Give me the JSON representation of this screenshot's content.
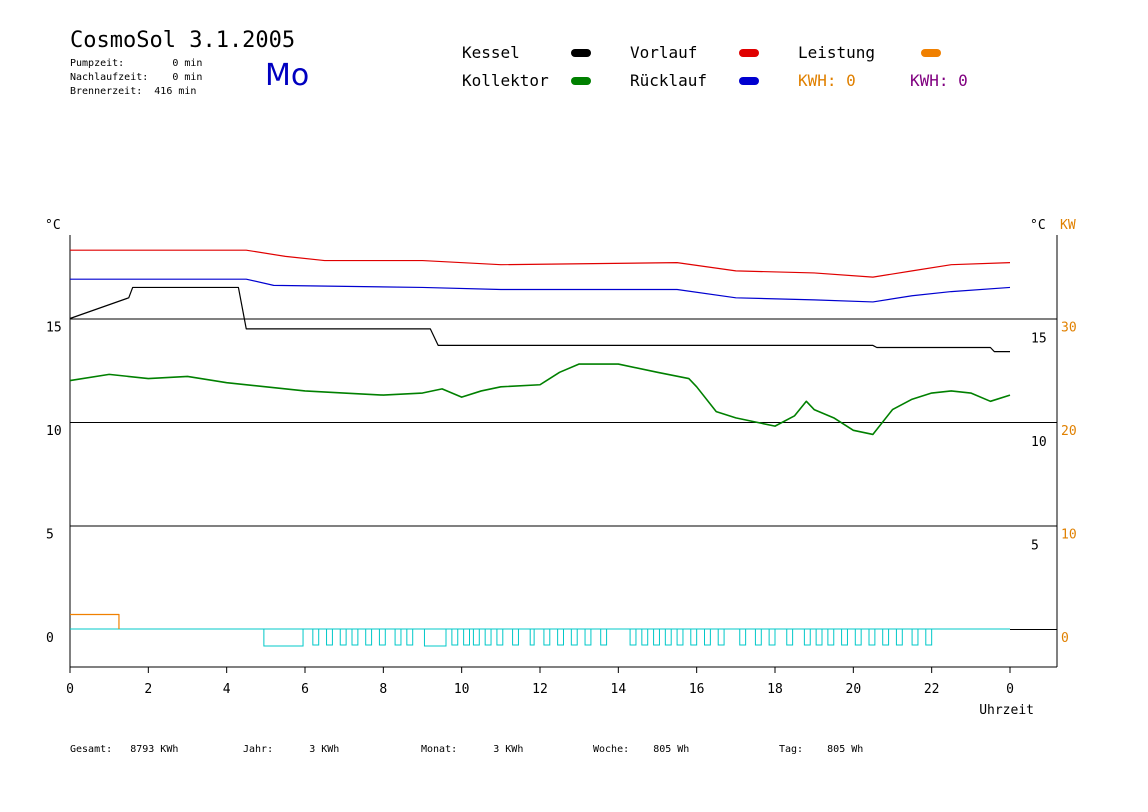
{
  "header": {
    "title": "CosmoSol 3.1.2005",
    "day": "Mo",
    "pumpzeit": "Pumpzeit:        0 min",
    "nachlaufzeit": "Nachlaufzeit:    0 min",
    "brennerzeit": "Brennerzeit:  416 min"
  },
  "legend": {
    "kessel": "Kessel",
    "kollektor": "Kollektor",
    "vorlauf": "Vorlauf",
    "ruecklauf": "Rücklauf",
    "leistung": "Leistung",
    "kwh1": "KWH: 0",
    "kwh2": "KWH: 0"
  },
  "colors": {
    "kessel": "#000000",
    "kollektor": "#008000",
    "vorlauf": "#e00000",
    "ruecklauf": "#0000d0",
    "leistung": "#f08000",
    "kwh2": "#800080",
    "pump": "#00c8c8"
  },
  "footer": {
    "gesamt": "Gesamt:   8793 KWh",
    "jahr": "Jahr:      3 KWh",
    "monat": "Monat:      3 KWh",
    "woche": "Woche:    805 Wh",
    "tag": "Tag:    805 Wh"
  },
  "chart_data": {
    "type": "line",
    "xlabel": "Uhrzeit",
    "ylabel_left": "°C",
    "ylabel_right": "°C",
    "ylabel_right2": "KW",
    "x_ticks": [
      "0",
      "2",
      "4",
      "6",
      "8",
      "10",
      "12",
      "14",
      "16",
      "18",
      "20",
      "22",
      "0"
    ],
    "y_ticks_left": [
      "0",
      "5",
      "10",
      "15"
    ],
    "y_ticks_right": [
      "5",
      "10",
      "15"
    ],
    "y_ticks_kw": [
      "0",
      "10",
      "20",
      "30"
    ],
    "xlim": [
      0,
      24
    ],
    "series": [
      {
        "name": "Vorlauf",
        "color": "#e00000",
        "points": [
          [
            0,
            18.3
          ],
          [
            4.5,
            18.3
          ],
          [
            5.5,
            18.0
          ],
          [
            6.5,
            17.8
          ],
          [
            9,
            17.8
          ],
          [
            11,
            17.6
          ],
          [
            15.5,
            17.7
          ],
          [
            17,
            17.3
          ],
          [
            19,
            17.2
          ],
          [
            20.5,
            17.0
          ],
          [
            21.5,
            17.3
          ],
          [
            22.5,
            17.6
          ],
          [
            24,
            17.7
          ]
        ]
      },
      {
        "name": "Rücklauf",
        "color": "#0000d0",
        "points": [
          [
            0,
            16.9
          ],
          [
            4.5,
            16.9
          ],
          [
            5.2,
            16.6
          ],
          [
            9,
            16.5
          ],
          [
            11,
            16.4
          ],
          [
            15.5,
            16.4
          ],
          [
            17,
            16.0
          ],
          [
            19,
            15.9
          ],
          [
            20.5,
            15.8
          ],
          [
            21.5,
            16.1
          ],
          [
            22.5,
            16.3
          ],
          [
            24,
            16.5
          ]
        ]
      },
      {
        "name": "Kessel",
        "color": "#000000",
        "points": [
          [
            0,
            15.0
          ],
          [
            1.5,
            16.0
          ],
          [
            1.6,
            16.5
          ],
          [
            4.3,
            16.5
          ],
          [
            4.4,
            15.5
          ],
          [
            4.5,
            14.5
          ],
          [
            9.2,
            14.5
          ],
          [
            9.4,
            13.7
          ],
          [
            20.5,
            13.7
          ],
          [
            20.6,
            13.6
          ],
          [
            23.5,
            13.6
          ],
          [
            23.6,
            13.4
          ],
          [
            24,
            13.4
          ]
        ]
      },
      {
        "name": "Kollektor",
        "color": "#008000",
        "points": [
          [
            0,
            12.0
          ],
          [
            1,
            12.3
          ],
          [
            2,
            12.1
          ],
          [
            3,
            12.2
          ],
          [
            4,
            11.9
          ],
          [
            5,
            11.7
          ],
          [
            6,
            11.5
          ],
          [
            7,
            11.4
          ],
          [
            8,
            11.3
          ],
          [
            9,
            11.4
          ],
          [
            9.5,
            11.6
          ],
          [
            10,
            11.2
          ],
          [
            10.5,
            11.5
          ],
          [
            11,
            11.7
          ],
          [
            12,
            11.8
          ],
          [
            12.5,
            12.4
          ],
          [
            13,
            12.8
          ],
          [
            14,
            12.8
          ],
          [
            15,
            12.4
          ],
          [
            15.8,
            12.1
          ],
          [
            16,
            11.7
          ],
          [
            16.5,
            10.5
          ],
          [
            17,
            10.2
          ],
          [
            17.5,
            10.0
          ],
          [
            18,
            9.8
          ],
          [
            18.5,
            10.3
          ],
          [
            18.8,
            11.0
          ],
          [
            19,
            10.6
          ],
          [
            19.5,
            10.2
          ],
          [
            20,
            9.6
          ],
          [
            20.5,
            9.4
          ],
          [
            21,
            10.6
          ],
          [
            21.5,
            11.1
          ],
          [
            22,
            11.4
          ],
          [
            22.5,
            11.5
          ],
          [
            23,
            11.4
          ],
          [
            23.5,
            11.0
          ],
          [
            24,
            11.3
          ]
        ]
      },
      {
        "name": "Leistung",
        "color": "#f08000",
        "points": [
          [
            0,
            0.7
          ],
          [
            1.25,
            0.7
          ]
        ]
      }
    ],
    "pump_blocks": [
      [
        4.95,
        5.95
      ],
      [
        6.2,
        6.35
      ],
      [
        6.55,
        6.7
      ],
      [
        6.9,
        7.05
      ],
      [
        7.2,
        7.35
      ],
      [
        7.55,
        7.7
      ],
      [
        7.9,
        8.05
      ],
      [
        8.3,
        8.45
      ],
      [
        8.6,
        8.75
      ],
      [
        9.05,
        9.6
      ],
      [
        9.75,
        9.9
      ],
      [
        10.05,
        10.2
      ],
      [
        10.3,
        10.45
      ],
      [
        10.6,
        10.75
      ],
      [
        10.9,
        11.05
      ],
      [
        11.3,
        11.45
      ],
      [
        11.75,
        11.85
      ],
      [
        12.1,
        12.25
      ],
      [
        12.45,
        12.6
      ],
      [
        12.8,
        12.95
      ],
      [
        13.15,
        13.3
      ],
      [
        13.55,
        13.7
      ],
      [
        14.3,
        14.45
      ],
      [
        14.6,
        14.75
      ],
      [
        14.9,
        15.05
      ],
      [
        15.2,
        15.35
      ],
      [
        15.5,
        15.65
      ],
      [
        15.85,
        16.0
      ],
      [
        16.2,
        16.35
      ],
      [
        16.55,
        16.7
      ],
      [
        17.1,
        17.25
      ],
      [
        17.5,
        17.65
      ],
      [
        17.85,
        18.0
      ],
      [
        18.3,
        18.45
      ],
      [
        18.75,
        18.9
      ],
      [
        19.05,
        19.2
      ],
      [
        19.35,
        19.5
      ],
      [
        19.7,
        19.85
      ],
      [
        20.05,
        20.2
      ],
      [
        20.4,
        20.55
      ],
      [
        20.75,
        20.9
      ],
      [
        21.1,
        21.25
      ],
      [
        21.5,
        21.65
      ],
      [
        21.85,
        22.0
      ]
    ]
  }
}
